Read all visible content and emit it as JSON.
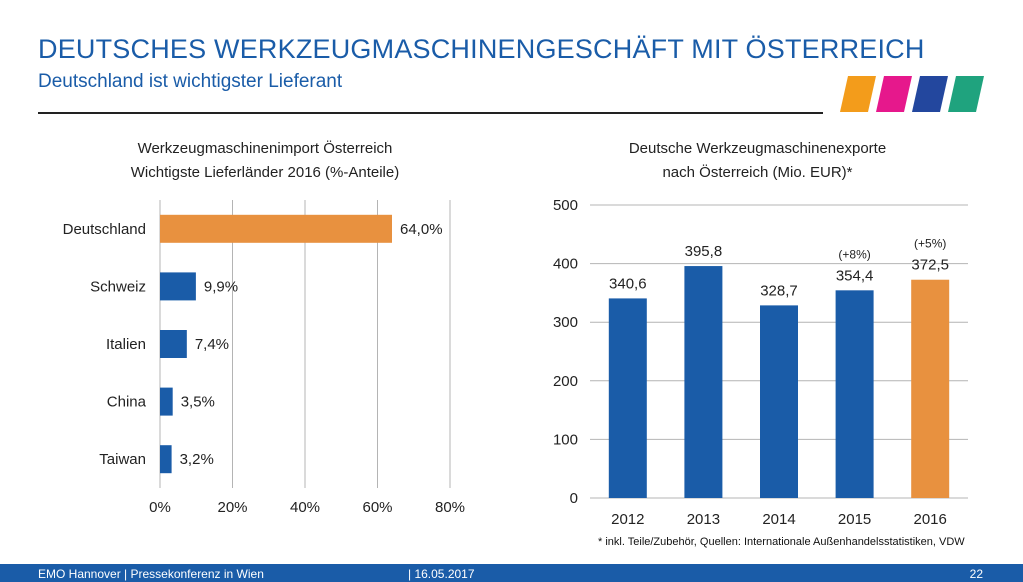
{
  "header": {
    "title": "DEUTSCHES WERKZEUGMASCHINENGESCHÄFT MIT ÖSTERREICH",
    "subtitle": "Deutschland ist wichtigster Lieferant"
  },
  "logo": {
    "colors": [
      "#f39c1b",
      "#e6188c",
      "#23479e",
      "#1fa37e"
    ]
  },
  "colors": {
    "blue": "#1a5ca8",
    "orange": "#e8913f",
    "grid": "#b4b4b4"
  },
  "chart_data": [
    {
      "type": "bar",
      "orientation": "horizontal",
      "title_lines": [
        "Werkzeugmaschinenimport Österreich",
        "Wichtigste Lieferländer 2016 (%-Anteile)"
      ],
      "categories": [
        "Deutschland",
        "Schweiz",
        "Italien",
        "China",
        "Taiwan"
      ],
      "values": [
        64.0,
        9.9,
        7.4,
        3.5,
        3.2
      ],
      "value_labels": [
        "64,0%",
        "9,9%",
        "7,4%",
        "3,5%",
        "3,2%"
      ],
      "bar_colors": [
        "#e8913f",
        "#1a5ca8",
        "#1a5ca8",
        "#1a5ca8",
        "#1a5ca8"
      ],
      "xlim": [
        0,
        80
      ],
      "xticks": [
        "0%",
        "20%",
        "40%",
        "60%",
        "80%"
      ],
      "grid": "vertical"
    },
    {
      "type": "bar",
      "title_lines": [
        "Deutsche Werkzeugmaschinenexporte",
        "nach Österreich (Mio. EUR)*"
      ],
      "categories": [
        "2012",
        "2013",
        "2014",
        "2015",
        "2016"
      ],
      "values": [
        340.6,
        395.8,
        328.7,
        354.4,
        372.5
      ],
      "value_labels": [
        "340,6",
        "395,8",
        "328,7",
        "354,4",
        "372,5"
      ],
      "annotations": [
        "",
        "",
        "",
        "(+8%)",
        "(+5%)"
      ],
      "bar_colors": [
        "#1a5ca8",
        "#1a5ca8",
        "#1a5ca8",
        "#1a5ca8",
        "#e8913f"
      ],
      "ylim": [
        0,
        500
      ],
      "yticks": [
        "0",
        "100",
        "200",
        "300",
        "400",
        "500"
      ],
      "grid": "horizontal"
    }
  ],
  "footnote": "* inkl. Teile/Zubehör, Quellen: Internationale Außenhandelsstatistiken, VDW",
  "footer": {
    "event": "EMO Hannover | Pressekonferenz in Wien",
    "date": "| 16.05.2017",
    "page": "22"
  }
}
